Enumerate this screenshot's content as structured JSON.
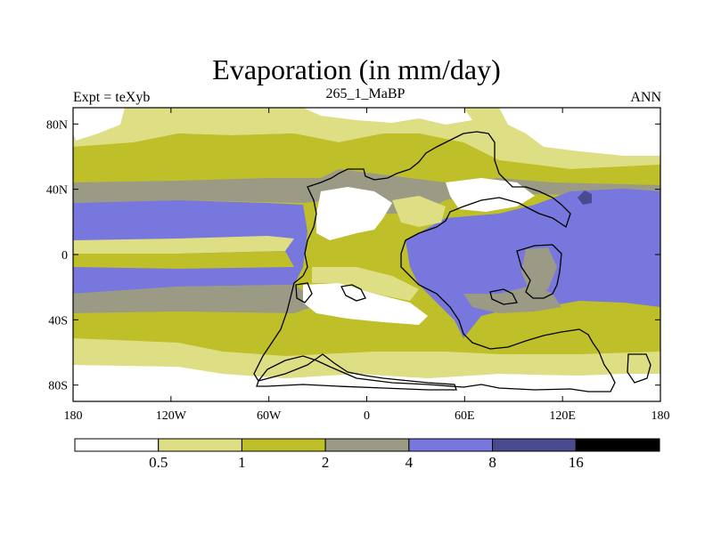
{
  "title": "Evaporation (in mm/day)",
  "left_label": "Expt = teXyb",
  "center_label": "265_1_MaBP",
  "right_label": "ANN",
  "palette": {
    "c0": "#ffffff",
    "c1": "#dede84",
    "c2": "#bfbf29",
    "c3": "#9b9b85",
    "c4": "#7777dd",
    "c5": "#4a4a90",
    "c6": "#000000",
    "coast": "#000000"
  },
  "map": {
    "lon_range": [
      -180,
      180
    ],
    "lat_range": [
      -90,
      90
    ],
    "x_ticks": [
      "180",
      "120W",
      "60W",
      "0",
      "60E",
      "120E",
      "180"
    ],
    "y_ticks": [
      "80N",
      "40N",
      "0",
      "40S",
      "80S"
    ]
  },
  "colorbar": {
    "levels": [
      "0.5",
      "1",
      "2",
      "4",
      "8",
      "16"
    ],
    "n_boxes": 7
  }
}
